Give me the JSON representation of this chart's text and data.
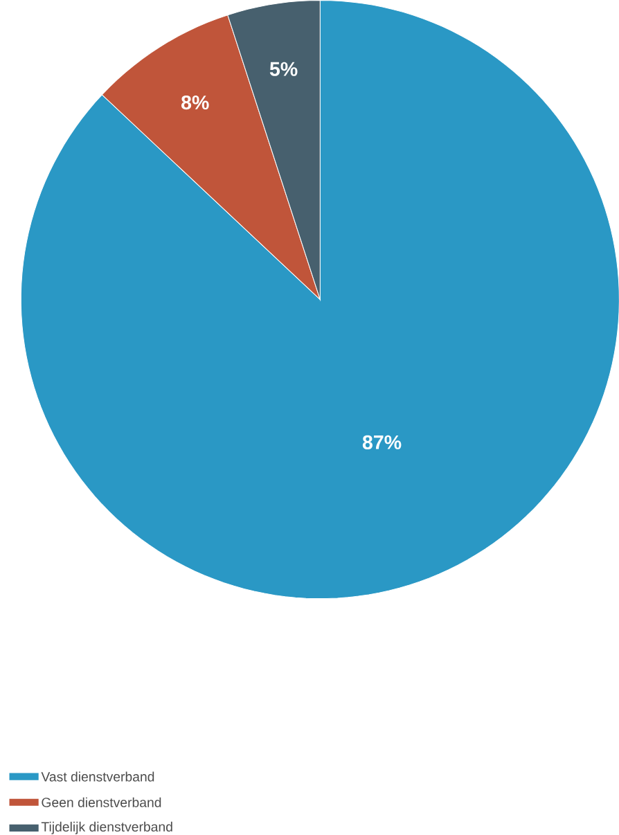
{
  "chart_data": {
    "type": "pie",
    "categories": [
      "Vast dienstverband",
      "Geen dienstverband",
      "Tijdelijk dienstverband"
    ],
    "values": [
      87,
      8,
      5
    ],
    "colors": [
      "#2a98c5",
      "#c0553a",
      "#47606e"
    ],
    "value_labels": [
      "87%",
      "8%",
      "5%"
    ],
    "legend": "bottom left"
  }
}
